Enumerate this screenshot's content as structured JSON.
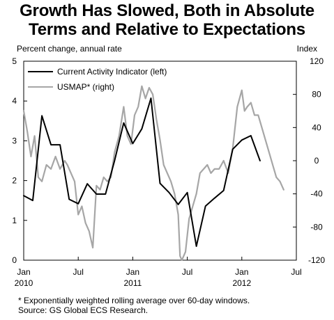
{
  "title_line1": "Growth Has Slowed, Both in Absolute",
  "title_line2": "Terms and Relative to Expectations",
  "chart_data": {
    "type": "line",
    "left_axis_label": "Percent change, annual rate",
    "right_axis_label": "Index",
    "left_ylim": [
      0,
      5
    ],
    "right_ylim": [
      -120,
      120
    ],
    "left_ticks": [
      0,
      1,
      2,
      3,
      4,
      5
    ],
    "right_ticks": [
      -120,
      -80,
      -40,
      0,
      40,
      80,
      120
    ],
    "x_ticks": [
      {
        "month": 0,
        "label": "Jan",
        "year": "2010"
      },
      {
        "month": 6,
        "label": "Jul",
        "year": ""
      },
      {
        "month": 12,
        "label": "Jan",
        "year": "2011"
      },
      {
        "month": 18,
        "label": "Jul",
        "year": ""
      },
      {
        "month": 24,
        "label": "Jan",
        "year": "2012"
      },
      {
        "month": 30,
        "label": "Jul",
        "year": ""
      }
    ],
    "xlim": [
      0,
      30
    ],
    "series": [
      {
        "name": "Current Activity Indicator (left)",
        "axis": "left",
        "color": "#000000",
        "points": [
          [
            0,
            1.62
          ],
          [
            1,
            1.5
          ],
          [
            2,
            3.63
          ],
          [
            3,
            2.9
          ],
          [
            4,
            2.9
          ],
          [
            5,
            1.53
          ],
          [
            6,
            1.42
          ],
          [
            7,
            1.92
          ],
          [
            8,
            1.66
          ],
          [
            9,
            1.66
          ],
          [
            10,
            2.5
          ],
          [
            11,
            3.45
          ],
          [
            12,
            2.93
          ],
          [
            13,
            3.3
          ],
          [
            14,
            4.07
          ],
          [
            15,
            1.93
          ],
          [
            16,
            1.7
          ],
          [
            17,
            1.4
          ],
          [
            18,
            1.7
          ],
          [
            19,
            0.35
          ],
          [
            20,
            1.36
          ],
          [
            21,
            1.56
          ],
          [
            22,
            1.75
          ],
          [
            23,
            2.79
          ],
          [
            24,
            3.02
          ],
          [
            25,
            3.13
          ],
          [
            26,
            2.5
          ]
        ]
      },
      {
        "name": "USMAP* (right)",
        "axis": "right",
        "color": "#a6a6a6",
        "points": [
          [
            0,
            60
          ],
          [
            0.4,
            35
          ],
          [
            0.8,
            5
          ],
          [
            1.2,
            30
          ],
          [
            1.6,
            -20
          ],
          [
            2,
            -25
          ],
          [
            2.5,
            -5
          ],
          [
            3,
            -10
          ],
          [
            3.5,
            5
          ],
          [
            4,
            -10
          ],
          [
            4.5,
            0
          ],
          [
            4.8,
            -5
          ],
          [
            5.2,
            -15
          ],
          [
            5.6,
            -25
          ],
          [
            6,
            -65
          ],
          [
            6.4,
            -55
          ],
          [
            6.8,
            -75
          ],
          [
            7.2,
            -85
          ],
          [
            7.6,
            -105
          ],
          [
            8,
            -30
          ],
          [
            8.4,
            -35
          ],
          [
            8.8,
            -20
          ],
          [
            9.2,
            -25
          ],
          [
            9.6,
            -20
          ],
          [
            10,
            10
          ],
          [
            10.5,
            30
          ],
          [
            11,
            65
          ],
          [
            11.4,
            30
          ],
          [
            11.8,
            20
          ],
          [
            12.2,
            55
          ],
          [
            12.6,
            65
          ],
          [
            13,
            90
          ],
          [
            13.4,
            75
          ],
          [
            13.8,
            88
          ],
          [
            14.2,
            80
          ],
          [
            14.6,
            50
          ],
          [
            15,
            25
          ],
          [
            15.4,
            -5
          ],
          [
            15.8,
            -15
          ],
          [
            16.2,
            -25
          ],
          [
            16.6,
            -40
          ],
          [
            17,
            -65
          ],
          [
            17.2,
            -115
          ],
          [
            17.4,
            -120
          ],
          [
            17.8,
            -110
          ],
          [
            18.2,
            -70
          ],
          [
            18.6,
            -55
          ],
          [
            19,
            -40
          ],
          [
            19.4,
            -15
          ],
          [
            19.8,
            -10
          ],
          [
            20.2,
            -5
          ],
          [
            20.6,
            -15
          ],
          [
            21,
            -10
          ],
          [
            21.5,
            -10
          ],
          [
            22,
            0
          ],
          [
            22.5,
            -15
          ],
          [
            23,
            15
          ],
          [
            23.5,
            65
          ],
          [
            24,
            85
          ],
          [
            24.3,
            60
          ],
          [
            24.6,
            65
          ],
          [
            25,
            70
          ],
          [
            25.4,
            55
          ],
          [
            25.8,
            55
          ],
          [
            26.2,
            40
          ],
          [
            26.6,
            25
          ],
          [
            27,
            10
          ],
          [
            27.4,
            -5
          ],
          [
            27.8,
            -20
          ],
          [
            28.2,
            -25
          ],
          [
            28.6,
            -35
          ]
        ]
      }
    ],
    "legend_position": "top-left"
  },
  "footnote1": "* Exponentially weighted rolling average over 60-day windows.",
  "footnote2": "Source: GS Global ECS Research."
}
